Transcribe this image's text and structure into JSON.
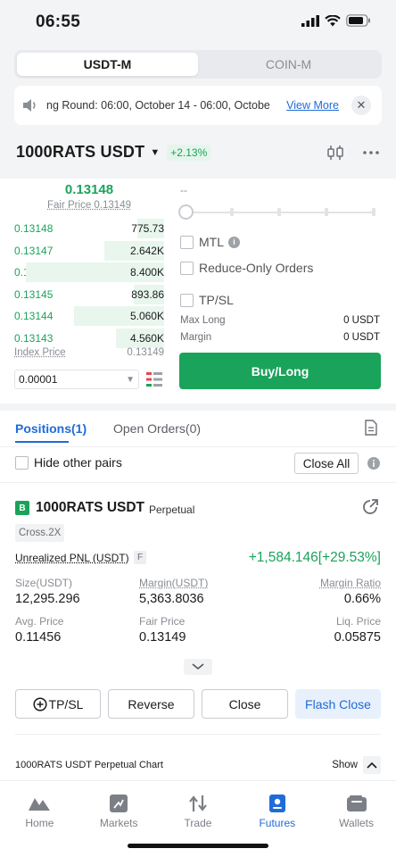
{
  "status_bar": {
    "time": "06:55"
  },
  "segment": {
    "tabs": [
      "USDT-M",
      "COIN-M"
    ],
    "active": "USDT-M"
  },
  "notice": {
    "text": "ng Round: 06:00, October 14 - 06:00, Octobe",
    "link": "View More"
  },
  "header": {
    "pair": "1000RATS USDT",
    "change": "+2.13%"
  },
  "order_book": {
    "last_price": "0.13148",
    "fair_price_label": "Fair Price 0.13149",
    "bids": [
      {
        "price": "0.13148",
        "qty": "775.73",
        "depth": 0.18
      },
      {
        "price": "0.13147",
        "qty": "2.642K",
        "depth": 0.4
      },
      {
        "price": "0.13146",
        "qty": "8.400K",
        "depth": 0.92
      },
      {
        "price": "0.13145",
        "qty": "893.86",
        "depth": 0.2
      },
      {
        "price": "0.13144",
        "qty": "5.060K",
        "depth": 0.6
      },
      {
        "price": "0.13143",
        "qty": "4.560K",
        "depth": 0.32
      }
    ],
    "index_price_label": "Index Price",
    "index_price": "0.13149",
    "tick_size": "0.00001"
  },
  "order_form": {
    "amount_placeholder": "--",
    "mtl_label": "MTL",
    "reduce_only_label": "Reduce-Only Orders",
    "tpsl_label": "TP/SL",
    "max_long_label": "Max Long",
    "max_long_value": "0 USDT",
    "margin_label": "Margin",
    "margin_value": "0 USDT",
    "buy_button": "Buy/Long"
  },
  "positions_tabs": {
    "positions": "Positions(1)",
    "open_orders": "Open Orders(0)"
  },
  "filters": {
    "hide_pairs": "Hide other pairs",
    "close_all": "Close All"
  },
  "position": {
    "side_badge": "B",
    "name": "1000RATS USDT",
    "type": "Perpetual",
    "mode": "Cross.2X",
    "upnl_label": "Unrealized PNL (USDT)",
    "upnl_flag": "F",
    "upnl_value": "+1,584.146[+29.53%]",
    "size_label": "Size(USDT)",
    "size_value": "12,295.296",
    "margin_label": "Margin(USDT)",
    "margin_value": "5,363.8036",
    "margin_ratio_label": "Margin Ratio",
    "margin_ratio_value": "0.66%",
    "avg_price_label": "Avg. Price",
    "avg_price_value": "0.11456",
    "fair_price_label": "Fair Price",
    "fair_price_value": "0.13149",
    "liq_price_label": "Liq. Price",
    "liq_price_value": "0.05875"
  },
  "actions": {
    "tpsl": "TP/SL",
    "reverse": "Reverse",
    "close": "Close",
    "flash_close": "Flash Close"
  },
  "chart_row": {
    "title": "1000RATS USDT Perpetual Chart",
    "show": "Show"
  },
  "nav": {
    "items": [
      {
        "label": "Home",
        "icon": "home-icon"
      },
      {
        "label": "Markets",
        "icon": "markets-icon"
      },
      {
        "label": "Trade",
        "icon": "trade-icon"
      },
      {
        "label": "Futures",
        "icon": "futures-icon"
      },
      {
        "label": "Wallets",
        "icon": "wallet-icon"
      }
    ],
    "active": "Futures"
  },
  "colors": {
    "green": "#1aa35a",
    "blue": "#1f6bd8"
  }
}
